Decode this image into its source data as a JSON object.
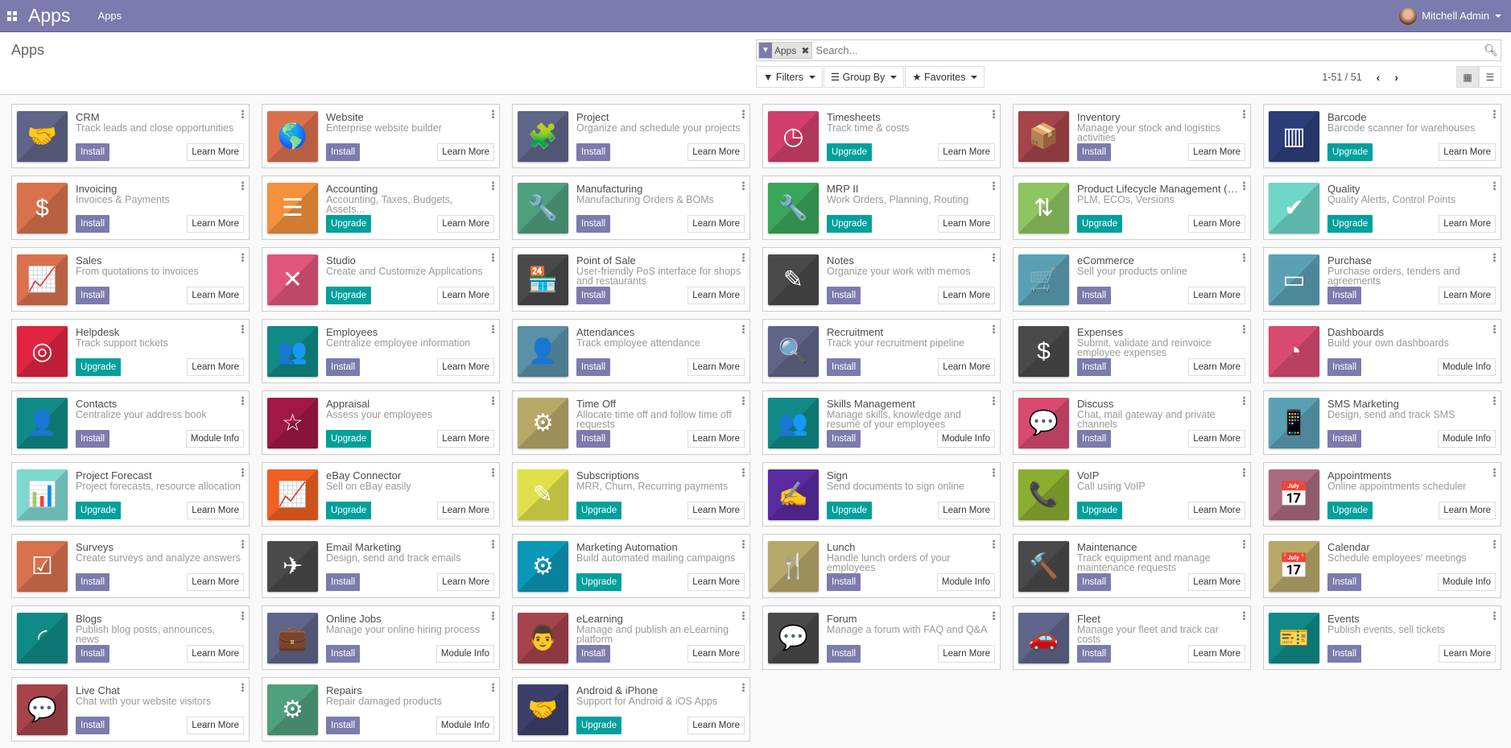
{
  "navbar": {
    "brand": "Apps",
    "menu": "Apps",
    "user": "Mitchell Admin"
  },
  "control_panel": {
    "title": "Apps",
    "facet": "Apps",
    "search_placeholder": "Search...",
    "filters": "Filters",
    "group_by": "Group By",
    "favorites": "Favorites",
    "pager": "1-51 / 51"
  },
  "colors": {
    "navbar": "#7c7bad",
    "install": "#7c7bad",
    "upgrade": "#00a09d"
  },
  "apps": [
    {
      "name": "CRM",
      "desc": "Track leads and close opportunities",
      "action": "Install",
      "info": "Learn More",
      "color": "#5f6588",
      "icon": "handshake",
      "glyph": "🤝"
    },
    {
      "name": "Website",
      "desc": "Enterprise website builder",
      "action": "Install",
      "info": "Learn More",
      "color": "#d9714d",
      "icon": "globe",
      "glyph": "🌎"
    },
    {
      "name": "Project",
      "desc": "Organize and schedule your projects",
      "action": "Install",
      "info": "Learn More",
      "color": "#5f6588",
      "icon": "puzzle",
      "glyph": "🧩"
    },
    {
      "name": "Timesheets",
      "desc": "Track time & costs",
      "action": "Upgrade",
      "info": "Learn More",
      "color": "#d23f6b",
      "icon": "clock",
      "glyph": "◷"
    },
    {
      "name": "Inventory",
      "desc": "Manage your stock and logistics activities",
      "action": "Install",
      "info": "Learn More",
      "color": "#a5444a",
      "icon": "box",
      "glyph": "📦"
    },
    {
      "name": "Barcode",
      "desc": "Barcode scanner for warehouses",
      "action": "Upgrade",
      "info": "Learn More",
      "color": "#2c3e7a",
      "icon": "barcode",
      "glyph": "▥"
    },
    {
      "name": "Invoicing",
      "desc": "Invoices & Payments",
      "action": "Install",
      "info": "Learn More",
      "color": "#d9714d",
      "icon": "invoice",
      "glyph": "$"
    },
    {
      "name": "Accounting",
      "desc": "Accounting, Taxes, Budgets, Assets...",
      "action": "Upgrade",
      "info": "Learn More",
      "color": "#f5913a",
      "icon": "document",
      "glyph": "☰"
    },
    {
      "name": "Manufacturing",
      "desc": "Manufacturing Orders & BOMs",
      "action": "Install",
      "info": "Learn More",
      "color": "#4fa07f",
      "icon": "wrench",
      "glyph": "🔧"
    },
    {
      "name": "MRP II",
      "desc": "Work Orders, Planning, Routing",
      "action": "Upgrade",
      "info": "Learn More",
      "color": "#3aa65a",
      "icon": "wrench",
      "glyph": "🔧"
    },
    {
      "name": "Product Lifecycle Management (P...",
      "desc": "PLM, ECOs, Versions",
      "action": "Upgrade",
      "info": "Learn More",
      "color": "#8fc462",
      "icon": "cube",
      "glyph": "⇅"
    },
    {
      "name": "Quality",
      "desc": "Quality Alerts, Control Points",
      "action": "Upgrade",
      "info": "Learn More",
      "color": "#6fd6c8",
      "icon": "clipboard-check",
      "glyph": "✔"
    },
    {
      "name": "Sales",
      "desc": "From quotations to invoices",
      "action": "Install",
      "info": "Learn More",
      "color": "#d9714d",
      "icon": "chart-up",
      "glyph": "📈"
    },
    {
      "name": "Studio",
      "desc": "Create and Customize Applications",
      "action": "Upgrade",
      "info": "Learn More",
      "color": "#e0557a",
      "icon": "tools",
      "glyph": "✕"
    },
    {
      "name": "Point of Sale",
      "desc": "User-friendly PoS interface for shops and restaurants",
      "action": "Install",
      "info": "Learn More",
      "color": "#4a4a4a",
      "icon": "shop",
      "glyph": "🏪"
    },
    {
      "name": "Notes",
      "desc": "Organize your work with memos",
      "action": "Install",
      "info": "Learn More",
      "color": "#4a4a4a",
      "icon": "note-pencil",
      "glyph": "✎"
    },
    {
      "name": "eCommerce",
      "desc": "Sell your products online",
      "action": "Install",
      "info": "Learn More",
      "color": "#5aa0b5",
      "icon": "cart",
      "glyph": "🛒"
    },
    {
      "name": "Purchase",
      "desc": "Purchase orders, tenders and agreements",
      "action": "Install",
      "info": "Learn More",
      "color": "#5aa0b5",
      "icon": "credit-card",
      "glyph": "▭"
    },
    {
      "name": "Helpdesk",
      "desc": "Track support tickets",
      "action": "Upgrade",
      "info": "Learn More",
      "color": "#e0243f",
      "icon": "lifebuoy",
      "glyph": "◎"
    },
    {
      "name": "Employees",
      "desc": "Centralize employee information",
      "action": "Install",
      "info": "Learn More",
      "color": "#0f8a86",
      "icon": "users",
      "glyph": "👥"
    },
    {
      "name": "Attendances",
      "desc": "Track employee attendance",
      "action": "Install",
      "info": "Learn More",
      "color": "#5a90a8",
      "icon": "user-clock",
      "glyph": "👤"
    },
    {
      "name": "Recruitment",
      "desc": "Track your recruitment pipeline",
      "action": "Install",
      "info": "Learn More",
      "color": "#5f6588",
      "icon": "search-user",
      "glyph": "🔍"
    },
    {
      "name": "Expenses",
      "desc": "Submit, validate and reinvoice employee expenses",
      "action": "Install",
      "info": "Learn More",
      "color": "#4a4a4a",
      "icon": "user-dollar",
      "glyph": "$"
    },
    {
      "name": "Dashboards",
      "desc": "Build your own dashboards",
      "action": "Install",
      "info": "Module Info",
      "color": "#d84a70",
      "icon": "gauge",
      "glyph": "◔"
    },
    {
      "name": "Contacts",
      "desc": "Centralize your address book",
      "action": "Install",
      "info": "Module Info",
      "color": "#0f8a86",
      "icon": "address-book",
      "glyph": "👤"
    },
    {
      "name": "Appraisal",
      "desc": "Assess your employees",
      "action": "Upgrade",
      "info": "Learn More",
      "color": "#a01845",
      "icon": "star",
      "glyph": "☆"
    },
    {
      "name": "Time Off",
      "desc": "Allocate time off and follow time off requests",
      "action": "Install",
      "info": "Learn More",
      "color": "#b8a868",
      "icon": "user-gear",
      "glyph": "⚙"
    },
    {
      "name": "Skills Management",
      "desc": "Manage skills, knowledge and resumé of your employees",
      "action": "Install",
      "info": "Module Info",
      "color": "#0f8a86",
      "icon": "users",
      "glyph": "👥"
    },
    {
      "name": "Discuss",
      "desc": "Chat, mail gateway and private channels",
      "action": "Install",
      "info": "Learn More",
      "color": "#d84a70",
      "icon": "chat",
      "glyph": "💬"
    },
    {
      "name": "SMS Marketing",
      "desc": "Design, send and track SMS",
      "action": "Install",
      "info": "Module Info",
      "color": "#5aa0b5",
      "icon": "mobile-sms",
      "glyph": "📱"
    },
    {
      "name": "Project Forecast",
      "desc": "Project forecasts, resource allocation",
      "action": "Upgrade",
      "info": "Learn More",
      "color": "#7dd8d0",
      "icon": "bar-chart",
      "glyph": "📊"
    },
    {
      "name": "eBay Connector",
      "desc": "Sell on eBay easily",
      "action": "Upgrade",
      "info": "Learn More",
      "color": "#f06020",
      "icon": "chart-up",
      "glyph": "📈"
    },
    {
      "name": "Subscriptions",
      "desc": "MRR, Churn, Recurring payments",
      "action": "Upgrade",
      "info": "Learn More",
      "color": "#dfe04a",
      "icon": "rss-pencil",
      "glyph": "✎"
    },
    {
      "name": "Sign",
      "desc": "Send documents to sign online",
      "action": "Upgrade",
      "info": "Learn More",
      "color": "#5a2aa0",
      "icon": "sign-document",
      "glyph": "✍"
    },
    {
      "name": "VoIP",
      "desc": "Call using VoIP",
      "action": "Upgrade",
      "info": "Learn More",
      "color": "#8aae30",
      "icon": "phone",
      "glyph": "📞"
    },
    {
      "name": "Appointments",
      "desc": "Online appointments scheduler",
      "action": "Upgrade",
      "info": "Learn More",
      "color": "#a86b80",
      "icon": "calendar-clock",
      "glyph": "📅"
    },
    {
      "name": "Surveys",
      "desc": "Create surveys and analyze answers",
      "action": "Install",
      "info": "Learn More",
      "color": "#d9714d",
      "icon": "checklist",
      "glyph": "☑"
    },
    {
      "name": "Email Marketing",
      "desc": "Design, send and track emails",
      "action": "Install",
      "info": "Learn More",
      "color": "#4a4a4a",
      "icon": "paper-plane",
      "glyph": "✈"
    },
    {
      "name": "Marketing Automation",
      "desc": "Build automated mailing campaigns",
      "action": "Upgrade",
      "info": "Learn More",
      "color": "#0a98b8",
      "icon": "gear-mail",
      "glyph": "⚙"
    },
    {
      "name": "Lunch",
      "desc": "Handle lunch orders of your employees",
      "action": "Install",
      "info": "Module Info",
      "color": "#b8a868",
      "icon": "cutlery",
      "glyph": "🍴"
    },
    {
      "name": "Maintenance",
      "desc": "Track equipment and manage maintenance requests",
      "action": "Install",
      "info": "Learn More",
      "color": "#4a4a4a",
      "icon": "hammer",
      "glyph": "🔨"
    },
    {
      "name": "Calendar",
      "desc": "Schedule employees' meetings",
      "action": "Install",
      "info": "Module Info",
      "color": "#b8a868",
      "icon": "calendar",
      "glyph": "📅"
    },
    {
      "name": "Blogs",
      "desc": "Publish blog posts, announces, news",
      "action": "Install",
      "info": "Learn More",
      "color": "#0f8a86",
      "icon": "rss",
      "glyph": "◜"
    },
    {
      "name": "Online Jobs",
      "desc": "Manage your online hiring process",
      "action": "Install",
      "info": "Module Info",
      "color": "#5f6588",
      "icon": "briefcase",
      "glyph": "💼"
    },
    {
      "name": "eLearning",
      "desc": "Manage and publish an eLearning platform",
      "action": "Install",
      "info": "Learn More",
      "color": "#a5444a",
      "icon": "presentation",
      "glyph": "👨"
    },
    {
      "name": "Forum",
      "desc": "Manage a forum with FAQ and Q&A",
      "action": "Install",
      "info": "Learn More",
      "color": "#4a4a4a",
      "icon": "chat-user",
      "glyph": "💬"
    },
    {
      "name": "Fleet",
      "desc": "Manage your fleet and track car costs",
      "action": "Install",
      "info": "Learn More",
      "color": "#5f6588",
      "icon": "car",
      "glyph": "🚗"
    },
    {
      "name": "Events",
      "desc": "Publish events, sell tickets",
      "action": "Install",
      "info": "Learn More",
      "color": "#0f8a86",
      "icon": "ticket",
      "glyph": "🎫"
    },
    {
      "name": "Live Chat",
      "desc": "Chat with your website visitors",
      "action": "Install",
      "info": "Learn More",
      "color": "#a5444a",
      "icon": "chat",
      "glyph": "💬"
    },
    {
      "name": "Repairs",
      "desc": "Repair damaged products",
      "action": "Install",
      "info": "Module Info",
      "color": "#4fa07f",
      "icon": "wrench-gear",
      "glyph": "⚙"
    },
    {
      "name": "Android & iPhone",
      "desc": "Support for Android & iOS Apps",
      "action": "Upgrade",
      "info": "Learn More",
      "color": "#3d3f6a",
      "icon": "handshake",
      "glyph": "🤝"
    }
  ]
}
